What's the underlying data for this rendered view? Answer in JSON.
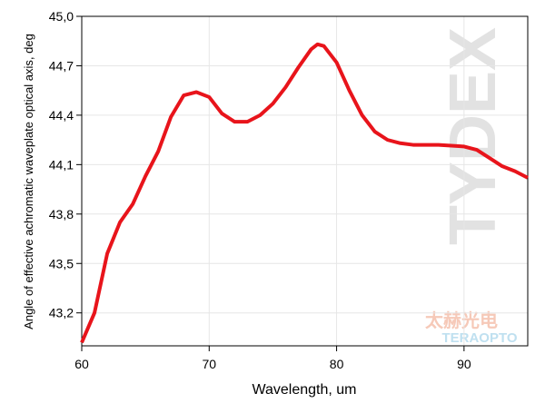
{
  "chart_data": {
    "type": "line",
    "xlabel": "Wavelength, um",
    "ylabel": "Angle of effective achromatic waveplate optical axis, deg",
    "watermarks": [
      "TYDEX",
      "太赫光电",
      "TERAOPTO"
    ],
    "x": [
      60,
      61,
      62,
      63,
      64,
      65,
      66,
      67,
      68,
      69,
      70,
      71,
      72,
      73,
      74,
      75,
      76,
      77,
      78,
      78.5,
      79,
      80,
      81,
      82,
      83,
      84,
      85,
      86,
      88,
      90,
      91,
      92,
      93,
      94,
      95
    ],
    "series": [
      {
        "color": "#e8141b",
        "values": [
          43.02,
          43.2,
          43.56,
          43.75,
          43.86,
          44.03,
          44.18,
          44.39,
          44.52,
          44.54,
          44.51,
          44.41,
          44.36,
          44.36,
          44.4,
          44.47,
          44.57,
          44.69,
          44.8,
          44.83,
          44.82,
          44.72,
          44.55,
          44.4,
          44.3,
          44.25,
          44.23,
          44.22,
          44.22,
          44.21,
          44.19,
          44.14,
          44.09,
          44.06,
          44.02
        ]
      }
    ],
    "xlim": [
      60,
      95
    ],
    "xticks": [
      60,
      70,
      80,
      90
    ],
    "ylim": [
      43.0,
      45.0
    ],
    "yticks": [
      {
        "value": 43.2,
        "label": "43,2"
      },
      {
        "value": 43.5,
        "label": "43,5"
      },
      {
        "value": 43.8,
        "label": "43,8"
      },
      {
        "value": 44.1,
        "label": "44,1"
      },
      {
        "value": 44.4,
        "label": "44,4"
      },
      {
        "value": 44.7,
        "label": "44,7"
      },
      {
        "value": 45.0,
        "label": "45,0"
      }
    ],
    "grid": true
  }
}
